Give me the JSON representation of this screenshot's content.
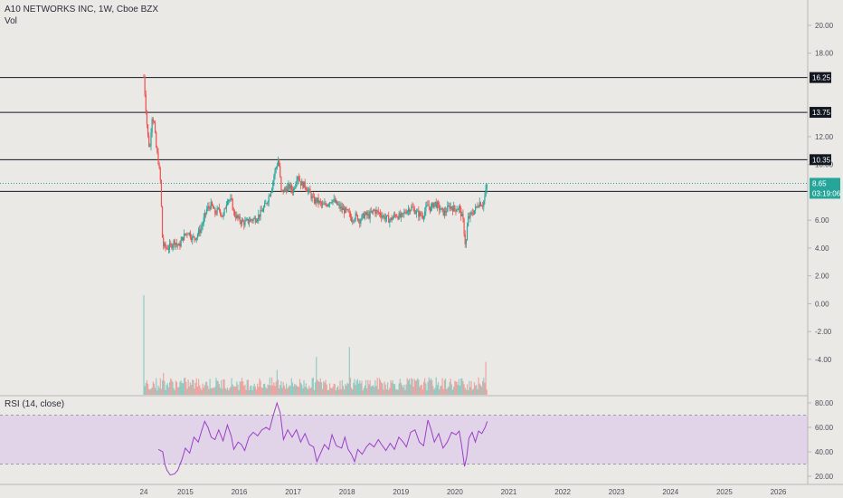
{
  "header": {
    "title": "A10 NETWORKS INC, 1W, Cboe BZX",
    "volume_label": "Vol"
  },
  "rsi_panel": {
    "label": "RSI (14, close)",
    "upper_band": 70,
    "lower_band": 30,
    "band_color": "#e1d4e9"
  },
  "colors": {
    "up": "#26a69a",
    "down": "#ef5350",
    "rsi_line": "#9c3fc8",
    "level_line": "#131722",
    "current_price_line": "#26a69a"
  },
  "price_tags": {
    "current": "8.65",
    "countdown": "03:19:06"
  },
  "chart_data": [
    {
      "type": "candlestick",
      "title": "A10 NETWORKS INC, 1W, Cboe BZX",
      "ylim": [
        -6,
        22
      ],
      "y_ticks": [
        "20.00",
        "18.00",
        "12.00",
        "10.00",
        "6.00",
        "4.00",
        "2.00",
        "0.00",
        "-2.00",
        "-4.00"
      ],
      "x_ticks": [
        "24",
        "2015",
        "2016",
        "2017",
        "2018",
        "2019",
        "2020",
        "2021",
        "2022",
        "2023",
        "2024",
        "2025",
        "2026"
      ],
      "x_tick_years": [
        2014.23,
        2015.0,
        2016.0,
        2017.0,
        2018.0,
        2019.0,
        2020.0,
        2021.0,
        2022.0,
        2023.0,
        2024.0,
        2025.0,
        2026.0
      ],
      "horizontal_levels": [
        {
          "value": 16.25,
          "label": "16.25"
        },
        {
          "value": 13.75,
          "label": "13.75"
        },
        {
          "value": 10.35,
          "label": "10.35"
        },
        {
          "value": 8.07,
          "label": "8.07"
        }
      ],
      "current_price": 8.65,
      "price_path": [
        [
          2014.23,
          16.3
        ],
        [
          2014.26,
          14.5
        ],
        [
          2014.3,
          12.2
        ],
        [
          2014.34,
          11.0
        ],
        [
          2014.38,
          13.5
        ],
        [
          2014.42,
          13.0
        ],
        [
          2014.46,
          11.2
        ],
        [
          2014.5,
          10.2
        ],
        [
          2014.54,
          8.7
        ],
        [
          2014.58,
          4.2
        ],
        [
          2014.65,
          4.0
        ],
        [
          2014.72,
          4.1
        ],
        [
          2014.8,
          4.5
        ],
        [
          2014.88,
          4.1
        ],
        [
          2014.96,
          4.8
        ],
        [
          2015.05,
          5.2
        ],
        [
          2015.13,
          4.7
        ],
        [
          2015.2,
          4.8
        ],
        [
          2015.3,
          5.5
        ],
        [
          2015.4,
          6.8
        ],
        [
          2015.48,
          7.1
        ],
        [
          2015.55,
          6.5
        ],
        [
          2015.63,
          6.8
        ],
        [
          2015.7,
          6.2
        ],
        [
          2015.78,
          7.6
        ],
        [
          2015.86,
          7.3
        ],
        [
          2015.9,
          6.5
        ],
        [
          2016.0,
          6.0
        ],
        [
          2016.1,
          5.8
        ],
        [
          2016.2,
          6.0
        ],
        [
          2016.3,
          6.1
        ],
        [
          2016.4,
          6.5
        ],
        [
          2016.5,
          7.2
        ],
        [
          2016.6,
          8.3
        ],
        [
          2016.66,
          9.5
        ],
        [
          2016.73,
          10.4
        ],
        [
          2016.78,
          8.0
        ],
        [
          2016.85,
          8.2
        ],
        [
          2016.93,
          8.4
        ],
        [
          2017.0,
          8.1
        ],
        [
          2017.08,
          9.3
        ],
        [
          2017.15,
          8.6
        ],
        [
          2017.22,
          8.5
        ],
        [
          2017.3,
          8.0
        ],
        [
          2017.38,
          7.4
        ],
        [
          2017.45,
          7.4
        ],
        [
          2017.55,
          7.0
        ],
        [
          2017.63,
          7.2
        ],
        [
          2017.72,
          7.5
        ],
        [
          2017.82,
          7.1
        ],
        [
          2017.9,
          6.8
        ],
        [
          2018.0,
          6.6
        ],
        [
          2018.08,
          6.1
        ],
        [
          2018.16,
          6.3
        ],
        [
          2018.24,
          6.0
        ],
        [
          2018.32,
          6.4
        ],
        [
          2018.4,
          6.3
        ],
        [
          2018.5,
          6.7
        ],
        [
          2018.6,
          6.5
        ],
        [
          2018.7,
          6.2
        ],
        [
          2018.8,
          6.0
        ],
        [
          2018.9,
          6.4
        ],
        [
          2019.0,
          6.2
        ],
        [
          2019.1,
          6.7
        ],
        [
          2019.2,
          6.9
        ],
        [
          2019.3,
          6.5
        ],
        [
          2019.4,
          6.3
        ],
        [
          2019.5,
          7.1
        ],
        [
          2019.55,
          6.8
        ],
        [
          2019.62,
          7.3
        ],
        [
          2019.7,
          6.9
        ],
        [
          2019.8,
          6.5
        ],
        [
          2019.9,
          7.0
        ],
        [
          2020.0,
          6.8
        ],
        [
          2020.08,
          6.9
        ],
        [
          2020.15,
          6.0
        ],
        [
          2020.2,
          4.0
        ],
        [
          2020.24,
          6.1
        ],
        [
          2020.3,
          6.4
        ],
        [
          2020.38,
          6.8
        ],
        [
          2020.45,
          7.3
        ],
        [
          2020.52,
          7.1
        ],
        [
          2020.56,
          7.8
        ],
        [
          2020.6,
          8.65
        ]
      ]
    },
    {
      "type": "bar",
      "series_name": "Vol",
      "x_range": [
        2014.23,
        2020.6
      ],
      "spikes": [
        [
          2014.23,
          1.0
        ],
        [
          2017.43,
          0.38
        ],
        [
          2018.05,
          0.48
        ],
        [
          2020.58,
          0.33
        ],
        [
          2016.7,
          0.25
        ],
        [
          2014.6,
          0.22
        ]
      ],
      "baseline": 0.11
    },
    {
      "type": "line",
      "series_name": "RSI (14, close)",
      "ylim": [
        15,
        85
      ],
      "y_ticks": [
        "80.00",
        "60.00",
        "40.00",
        "20.00"
      ],
      "points": [
        [
          2014.5,
          42
        ],
        [
          2014.58,
          40
        ],
        [
          2014.62,
          30
        ],
        [
          2014.66,
          25
        ],
        [
          2014.72,
          21
        ],
        [
          2014.8,
          22
        ],
        [
          2014.86,
          25
        ],
        [
          2014.94,
          34
        ],
        [
          2015.0,
          43
        ],
        [
          2015.08,
          39
        ],
        [
          2015.16,
          52
        ],
        [
          2015.24,
          48
        ],
        [
          2015.3,
          57
        ],
        [
          2015.36,
          65
        ],
        [
          2015.42,
          60
        ],
        [
          2015.48,
          52
        ],
        [
          2015.55,
          50
        ],
        [
          2015.62,
          58
        ],
        [
          2015.7,
          49
        ],
        [
          2015.78,
          62
        ],
        [
          2015.85,
          53
        ],
        [
          2015.9,
          42
        ],
        [
          2015.98,
          48
        ],
        [
          2016.04,
          46
        ],
        [
          2016.1,
          41
        ],
        [
          2016.18,
          52
        ],
        [
          2016.26,
          56
        ],
        [
          2016.34,
          53
        ],
        [
          2016.42,
          58
        ],
        [
          2016.5,
          60
        ],
        [
          2016.56,
          58
        ],
        [
          2016.62,
          68
        ],
        [
          2016.7,
          80
        ],
        [
          2016.76,
          72
        ],
        [
          2016.82,
          50
        ],
        [
          2016.9,
          58
        ],
        [
          2016.98,
          52
        ],
        [
          2017.06,
          58
        ],
        [
          2017.14,
          48
        ],
        [
          2017.22,
          55
        ],
        [
          2017.3,
          46
        ],
        [
          2017.38,
          44
        ],
        [
          2017.44,
          32
        ],
        [
          2017.5,
          38
        ],
        [
          2017.58,
          46
        ],
        [
          2017.66,
          42
        ],
        [
          2017.72,
          54
        ],
        [
          2017.8,
          45
        ],
        [
          2017.9,
          43
        ],
        [
          2017.96,
          52
        ],
        [
          2018.02,
          42
        ],
        [
          2018.08,
          38
        ],
        [
          2018.14,
          32
        ],
        [
          2018.2,
          42
        ],
        [
          2018.28,
          38
        ],
        [
          2018.36,
          44
        ],
        [
          2018.42,
          47
        ],
        [
          2018.5,
          44
        ],
        [
          2018.58,
          50
        ],
        [
          2018.64,
          46
        ],
        [
          2018.72,
          41
        ],
        [
          2018.8,
          47
        ],
        [
          2018.88,
          42
        ],
        [
          2018.96,
          52
        ],
        [
          2019.04,
          48
        ],
        [
          2019.1,
          44
        ],
        [
          2019.18,
          56
        ],
        [
          2019.26,
          58
        ],
        [
          2019.34,
          48
        ],
        [
          2019.42,
          45
        ],
        [
          2019.5,
          66
        ],
        [
          2019.56,
          58
        ],
        [
          2019.62,
          48
        ],
        [
          2019.7,
          55
        ],
        [
          2019.78,
          43
        ],
        [
          2019.86,
          48
        ],
        [
          2019.94,
          56
        ],
        [
          2020.02,
          54
        ],
        [
          2020.08,
          57
        ],
        [
          2020.12,
          47
        ],
        [
          2020.18,
          28
        ],
        [
          2020.22,
          36
        ],
        [
          2020.26,
          51
        ],
        [
          2020.32,
          56
        ],
        [
          2020.38,
          48
        ],
        [
          2020.44,
          57
        ],
        [
          2020.5,
          55
        ],
        [
          2020.56,
          60
        ],
        [
          2020.6,
          65
        ]
      ]
    }
  ]
}
